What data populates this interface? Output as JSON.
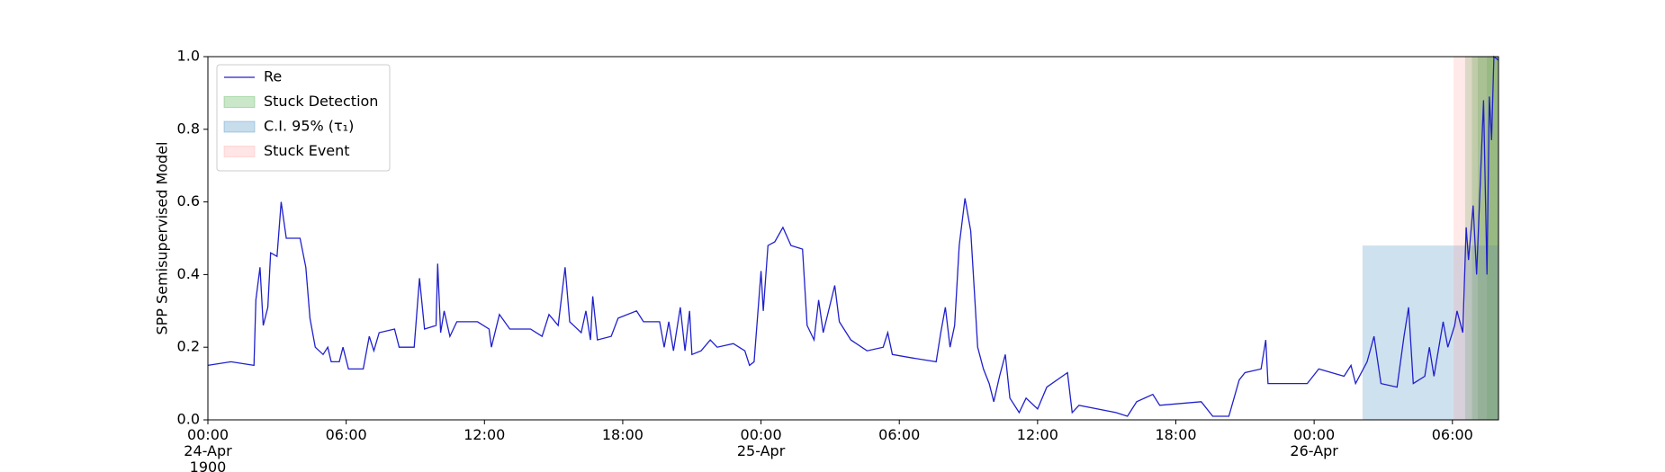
{
  "chart_data": {
    "type": "line",
    "ylabel": "SPP Semisupervised Model",
    "xlim": [
      0,
      56
    ],
    "ylim": [
      0,
      1
    ],
    "xticks": [
      {
        "value": 0,
        "label": "00:00\n24-Apr\n1900"
      },
      {
        "value": 6,
        "label": "06:00"
      },
      {
        "value": 12,
        "label": "12:00"
      },
      {
        "value": 18,
        "label": "18:00"
      },
      {
        "value": 24,
        "label": "00:00\n25-Apr"
      },
      {
        "value": 30,
        "label": "06:00"
      },
      {
        "value": 36,
        "label": "12:00"
      },
      {
        "value": 42,
        "label": "18:00"
      },
      {
        "value": 48,
        "label": "00:00\n26-Apr"
      },
      {
        "value": 54,
        "label": "06:00"
      }
    ],
    "yticks": [
      {
        "value": 0,
        "label": "0.0"
      },
      0.2,
      0.4,
      0.6,
      0.8,
      {
        "value": 1,
        "label": "1.0"
      }
    ],
    "legend": "upper left",
    "series": [
      {
        "name": "Re",
        "color": "#2020cc",
        "x": [
          0,
          0.5,
          1,
          1.5,
          2.0,
          2.08,
          2.26,
          2.4,
          2.6,
          2.72,
          3.0,
          3.18,
          3.4,
          4.0,
          4.25,
          4.43,
          4.66,
          5.0,
          5.2,
          5.35,
          5.7,
          5.86,
          6.1,
          6.74,
          7.0,
          7.2,
          7.43,
          8.1,
          8.3,
          8.95,
          9.18,
          9.4,
          9.9,
          9.97,
          10.1,
          10.25,
          10.5,
          10.8,
          11.7,
          12.2,
          12.3,
          12.65,
          13.1,
          14.0,
          14.5,
          14.8,
          15.2,
          15.5,
          15.7,
          16.2,
          16.4,
          16.6,
          16.7,
          16.9,
          17.5,
          17.8,
          18.6,
          18.9,
          19.6,
          19.8,
          20.0,
          20.2,
          20.5,
          20.7,
          20.9,
          21.0,
          21.4,
          21.8,
          22.1,
          22.8,
          23.3,
          23.5,
          23.7,
          24.0,
          24.1,
          24.3,
          24.6,
          24.95,
          25.3,
          25.8,
          26.0,
          26.3,
          26.5,
          26.7,
          27.2,
          27.4,
          27.9,
          28.6,
          29.3,
          29.5,
          29.7,
          30.6,
          31.6,
          31.8,
          32.0,
          32.2,
          32.4,
          32.6,
          32.85,
          33.1,
          33.3,
          33.4,
          33.65,
          33.9,
          34.1,
          34.35,
          34.6,
          34.8,
          35.2,
          35.5,
          36.0,
          36.4,
          37.3,
          37.5,
          37.8,
          39.4,
          39.9,
          40.3,
          41.0,
          41.3,
          43.1,
          43.6,
          44.3,
          44.75,
          45.0,
          45.7,
          45.9,
          46.0,
          46.8,
          47.7,
          48.2,
          49.3,
          49.6,
          49.8,
          50.3,
          50.6,
          50.9,
          51.6,
          51.9,
          52.1,
          52.3,
          52.8,
          53.0,
          53.2,
          53.6,
          53.8,
          54.1,
          54.2,
          54.45,
          54.6,
          54.7,
          54.9,
          55.05,
          55.35,
          55.5,
          55.6,
          55.7,
          55.8,
          56.0
        ],
        "values": [
          0.15,
          0.155,
          0.16,
          0.155,
          0.15,
          0.33,
          0.42,
          0.26,
          0.31,
          0.46,
          0.45,
          0.6,
          0.5,
          0.5,
          0.42,
          0.28,
          0.2,
          0.18,
          0.2,
          0.16,
          0.16,
          0.2,
          0.14,
          0.14,
          0.23,
          0.19,
          0.24,
          0.25,
          0.2,
          0.2,
          0.39,
          0.25,
          0.26,
          0.43,
          0.24,
          0.3,
          0.23,
          0.27,
          0.27,
          0.25,
          0.2,
          0.29,
          0.25,
          0.25,
          0.23,
          0.29,
          0.26,
          0.42,
          0.27,
          0.24,
          0.3,
          0.22,
          0.34,
          0.22,
          0.23,
          0.28,
          0.3,
          0.27,
          0.27,
          0.2,
          0.27,
          0.19,
          0.31,
          0.19,
          0.3,
          0.18,
          0.19,
          0.22,
          0.2,
          0.21,
          0.19,
          0.15,
          0.16,
          0.41,
          0.3,
          0.48,
          0.49,
          0.53,
          0.48,
          0.47,
          0.26,
          0.22,
          0.33,
          0.24,
          0.37,
          0.27,
          0.22,
          0.19,
          0.2,
          0.24,
          0.18,
          0.17,
          0.16,
          0.24,
          0.31,
          0.2,
          0.26,
          0.48,
          0.61,
          0.52,
          0.31,
          0.2,
          0.14,
          0.1,
          0.05,
          0.12,
          0.18,
          0.06,
          0.02,
          0.06,
          0.03,
          0.09,
          0.13,
          0.02,
          0.04,
          0.02,
          0.01,
          0.05,
          0.07,
          0.04,
          0.05,
          0.01,
          0.01,
          0.11,
          0.13,
          0.14,
          0.22,
          0.1,
          0.1,
          0.1,
          0.14,
          0.12,
          0.15,
          0.1,
          0.16,
          0.23,
          0.1,
          0.09,
          0.23,
          0.31,
          0.1,
          0.12,
          0.2,
          0.12,
          0.27,
          0.2,
          0.26,
          0.3,
          0.24,
          0.53,
          0.44,
          0.59,
          0.4,
          0.88,
          0.4,
          0.89,
          0.77,
          1.0,
          0.99
        ]
      }
    ],
    "spans": [
      {
        "name": "Stuck Detection",
        "color": "#2ca02c",
        "ranges": [
          {
            "x": [
              54.55,
              56
            ],
            "y": [
              0,
              1
            ]
          },
          {
            "x": [
              54.85,
              56
            ],
            "y": [
              0,
              1
            ]
          },
          {
            "x": [
              55.1,
              56
            ],
            "y": [
              0,
              1
            ]
          },
          {
            "x": [
              55.5,
              56
            ],
            "y": [
              0,
              1
            ]
          }
        ]
      },
      {
        "name": "C.I. 95% (τ₁)",
        "color": "#1f77b4",
        "ranges": [
          {
            "x": [
              50.1,
              56
            ],
            "y": [
              0,
              0.48
            ]
          }
        ]
      },
      {
        "name": "Stuck Event",
        "color": "#ff9999",
        "ranges": [
          {
            "x": [
              54.05,
              56
            ],
            "y": [
              0,
              1
            ]
          }
        ]
      }
    ]
  }
}
